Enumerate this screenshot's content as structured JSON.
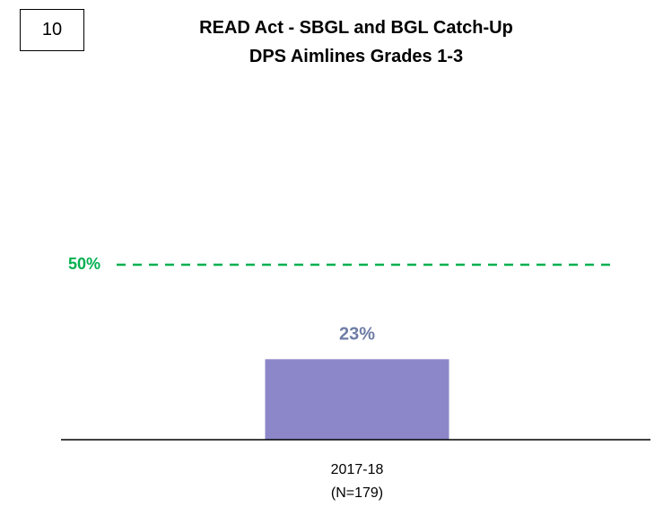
{
  "slide_number": "10",
  "chart_data": {
    "type": "bar",
    "title": "READ Act - SBGL and BGL Catch-Up",
    "subtitle": "DPS Aimlines Grades 1-3",
    "categories": [
      "2017-18\n(N=179)"
    ],
    "values": [
      23
    ],
    "value_labels": [
      "23%"
    ],
    "color": "#8b87c8",
    "value_label_color": "#6f7da6",
    "ylim": [
      0,
      60
    ],
    "reference_line": {
      "value": 50,
      "label": "50%",
      "color": "#00b050",
      "style": "dashed"
    }
  }
}
